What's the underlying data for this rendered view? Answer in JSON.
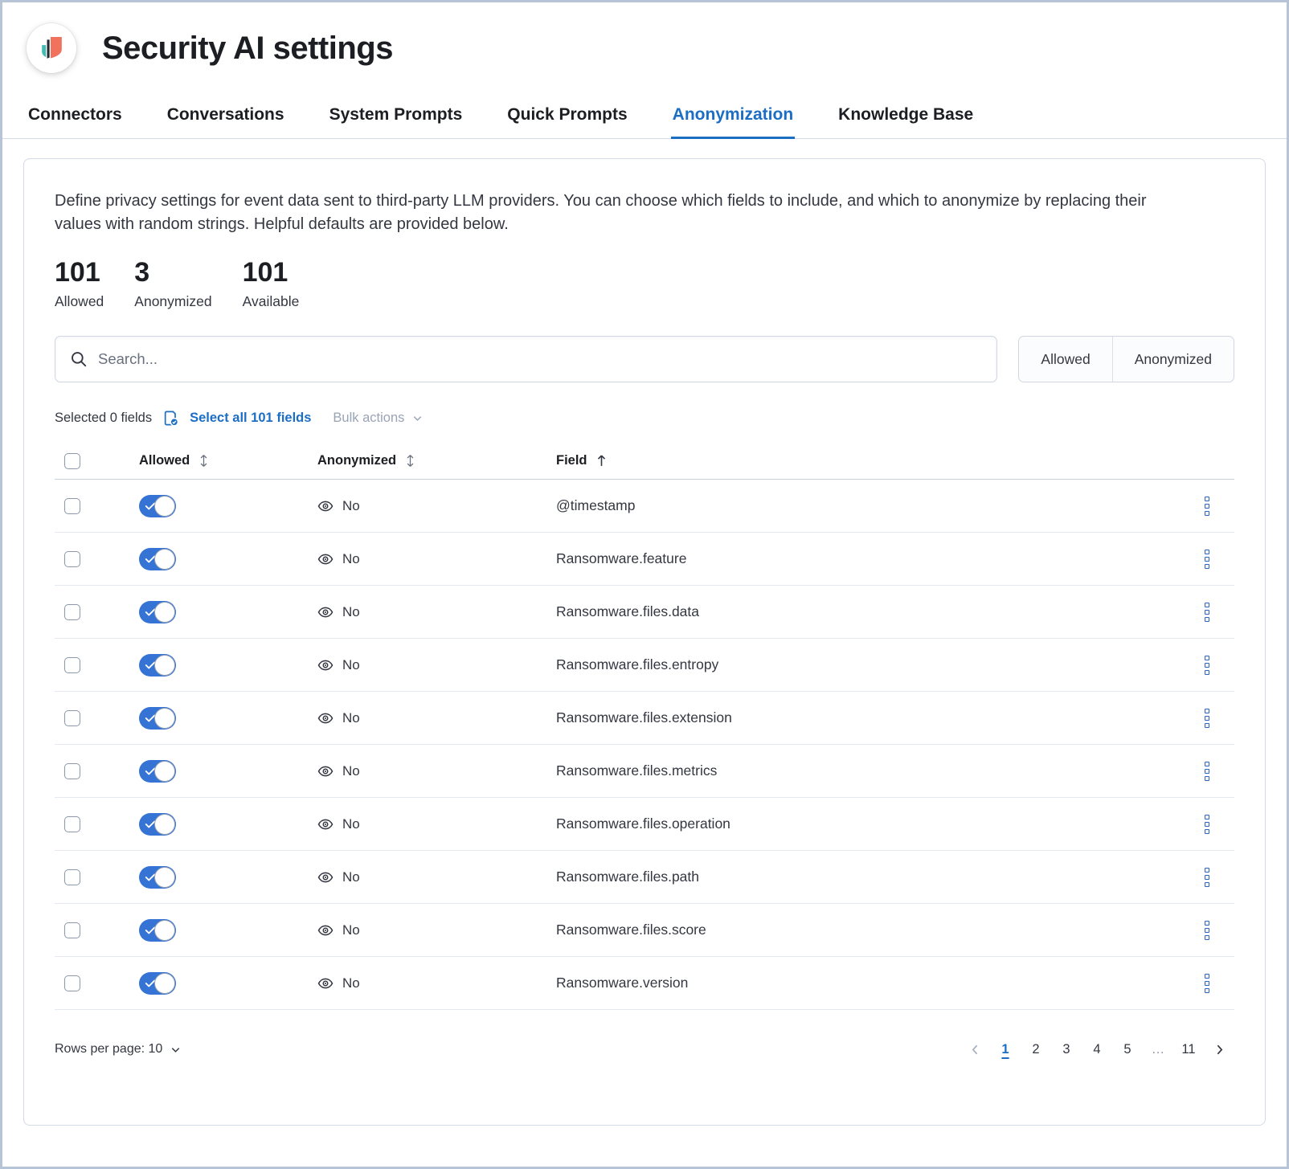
{
  "colors": {
    "accent": "#1C6EC5",
    "toggle_on": "#3573D4",
    "action_icon": "#3063BF",
    "logo_orange": "#F0715C",
    "logo_teal": "#41BCB1",
    "logo_navy": "#252B33"
  },
  "header": {
    "title": "Security AI settings",
    "logo_icon": "security-shield-icon"
  },
  "tabs": [
    {
      "label": "Connectors",
      "active": false
    },
    {
      "label": "Conversations",
      "active": false
    },
    {
      "label": "System Prompts",
      "active": false
    },
    {
      "label": "Quick Prompts",
      "active": false
    },
    {
      "label": "Anonymization",
      "active": true
    },
    {
      "label": "Knowledge Base",
      "active": false
    }
  ],
  "panel": {
    "description": "Define privacy settings for event data sent to third-party LLM providers. You can choose which fields to include, and which to anonymize by replacing their values with random strings. Helpful defaults are provided below.",
    "stats": [
      {
        "value": "101",
        "label": "Allowed"
      },
      {
        "value": "3",
        "label": "Anonymized"
      },
      {
        "value": "101",
        "label": "Available"
      }
    ],
    "search": {
      "placeholder": "Search...",
      "value": "",
      "icon": "search-icon"
    },
    "filters": [
      {
        "label": "Allowed"
      },
      {
        "label": "Anonymized"
      }
    ],
    "selection": {
      "selected_text": "Selected 0 fields",
      "select_all_label": "Select all 101 fields",
      "bulk_actions_label": "Bulk actions",
      "icon": "pages-select-icon"
    },
    "table": {
      "columns": [
        {
          "key": "allowed",
          "label": "Allowed",
          "sortable": true,
          "sorted": null
        },
        {
          "key": "anonymized",
          "label": "Anonymized",
          "sortable": true,
          "sorted": null
        },
        {
          "key": "field",
          "label": "Field",
          "sortable": true,
          "sorted": "asc"
        }
      ],
      "rows": [
        {
          "allowed": true,
          "anonymized": "No",
          "field": "@timestamp"
        },
        {
          "allowed": true,
          "anonymized": "No",
          "field": "Ransomware.feature"
        },
        {
          "allowed": true,
          "anonymized": "No",
          "field": "Ransomware.files.data"
        },
        {
          "allowed": true,
          "anonymized": "No",
          "field": "Ransomware.files.entropy"
        },
        {
          "allowed": true,
          "anonymized": "No",
          "field": "Ransomware.files.extension"
        },
        {
          "allowed": true,
          "anonymized": "No",
          "field": "Ransomware.files.metrics"
        },
        {
          "allowed": true,
          "anonymized": "No",
          "field": "Ransomware.files.operation"
        },
        {
          "allowed": true,
          "anonymized": "No",
          "field": "Ransomware.files.path"
        },
        {
          "allowed": true,
          "anonymized": "No",
          "field": "Ransomware.files.score"
        },
        {
          "allowed": true,
          "anonymized": "No",
          "field": "Ransomware.version"
        }
      ]
    },
    "footer": {
      "rows_per_page_label": "Rows per page: 10",
      "pagination": {
        "active_page": "1",
        "pages": [
          "1",
          "2",
          "3",
          "4",
          "5",
          "…",
          "11"
        ]
      }
    }
  }
}
